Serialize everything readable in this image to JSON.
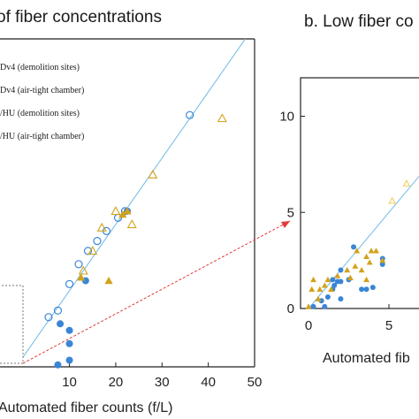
{
  "colors": {
    "blue": "#3a86d6",
    "gold": "#d2a21c",
    "gold_light": "#f0d060",
    "line": "#7cc0e8",
    "arrow": "#e03a3a",
    "axis": "#222222"
  },
  "chart_data": [
    {
      "type": "scatter",
      "title": "of fiber concentrations",
      "xlabel": "Automated fiber counts (f/L)",
      "ylabel": "",
      "xlim": [
        -5,
        50
      ],
      "ylim": [
        -1.5,
        48
      ],
      "xticks": [
        10,
        20,
        30,
        40,
        50
      ],
      "xtick_labels": [
        "10",
        "20",
        "30",
        "40",
        "50"
      ],
      "grid": false,
      "legend_position": "top-left",
      "legend": [
        "Dv4 (demolition sites)",
        "Dv4 (air-tight chamber)",
        "/HU (demolition sites)",
        "/HU (air-tight chamber)"
      ],
      "reference_line": {
        "label": "",
        "slope": 1,
        "intercept": 0
      },
      "series": [
        {
          "name": "Dv4 (demolition sites)",
          "marker": "circle-open",
          "color": "blue",
          "points": [
            [
              36,
              36.5
            ],
            [
              22,
              22
            ],
            [
              20.5,
              21
            ],
            [
              18,
              19
            ],
            [
              16,
              17.5
            ],
            [
              14,
              16
            ],
            [
              12,
              14
            ],
            [
              10,
              11
            ],
            [
              7.5,
              7
            ],
            [
              5.5,
              6
            ]
          ]
        },
        {
          "name": "Dv4 (air-tight chamber)",
          "marker": "triangle-open",
          "color": "gold",
          "points": [
            [
              43,
              36
            ],
            [
              28,
              27.5
            ],
            [
              23.5,
              20
            ],
            [
              17,
              19.5
            ],
            [
              15,
              16
            ],
            [
              13,
              13
            ],
            [
              20,
              22
            ]
          ]
        },
        {
          "name": "/HU (demolition sites)",
          "marker": "circle-filled",
          "color": "blue",
          "points": [
            [
              22.5,
              22
            ],
            [
              13.5,
              11.5
            ],
            [
              10,
              4
            ],
            [
              10,
              2
            ],
            [
              10,
              -0.5
            ],
            [
              8,
              5
            ],
            [
              7.5,
              -1.2
            ]
          ]
        },
        {
          "name": "/HU (air-tight chamber)",
          "marker": "triangle-filled",
          "color": "gold",
          "points": [
            [
              21.5,
              21.5
            ],
            [
              22.5,
              22
            ],
            [
              18.5,
              11.5
            ],
            [
              12.5,
              12
            ]
          ]
        }
      ]
    },
    {
      "type": "scatter",
      "title": "b. Low fiber co",
      "xlabel": "Automated fib",
      "ylabel": "",
      "xlim": [
        -0.5,
        7.2
      ],
      "ylim": [
        0,
        12
      ],
      "xticks": [
        0,
        5
      ],
      "xtick_labels": [
        "0",
        "5"
      ],
      "yticks": [
        0,
        5,
        10
      ],
      "ytick_labels": [
        "0",
        "5",
        "10"
      ],
      "grid": false,
      "reference_line": {
        "label": "",
        "slope": 1,
        "intercept": 0
      },
      "series": [
        {
          "name": "circle-filled-blue",
          "marker": "circle-filled",
          "color": "blue",
          "points": [
            [
              0.3,
              0.1
            ],
            [
              0.8,
              0.4
            ],
            [
              1.0,
              0.1
            ],
            [
              2.0,
              0.5
            ],
            [
              1.2,
              0.6
            ],
            [
              1.5,
              1.0
            ],
            [
              1.6,
              1.2
            ],
            [
              1.8,
              1.4
            ],
            [
              1.5,
              1.5
            ],
            [
              2.0,
              1.4
            ],
            [
              2.0,
              2.0
            ],
            [
              2.8,
              3.2
            ],
            [
              2.5,
              1.5
            ],
            [
              3.3,
              1.0
            ],
            [
              3.6,
              1.0
            ],
            [
              4.0,
              1.1
            ],
            [
              4.6,
              2.3
            ],
            [
              4.6,
              2.6
            ]
          ]
        },
        {
          "name": "triangle-filled-gold",
          "marker": "triangle-filled",
          "color": "gold",
          "points": [
            [
              0,
              0.1
            ],
            [
              0.2,
              1.0
            ],
            [
              0.3,
              1.5
            ],
            [
              0.6,
              0.5
            ],
            [
              0.7,
              1.0
            ],
            [
              1.0,
              1.2
            ],
            [
              1.2,
              1.5
            ],
            [
              1.4,
              1.0
            ],
            [
              1.8,
              1.7
            ],
            [
              2.4,
              2.0
            ],
            [
              2.6,
              1.6
            ],
            [
              2.9,
              2.2
            ],
            [
              3.0,
              3.0
            ],
            [
              3.3,
              2.0
            ],
            [
              3.6,
              2.7
            ],
            [
              3.8,
              2.4
            ],
            [
              3.9,
              3.0
            ],
            [
              4.2,
              3.0
            ],
            [
              4.6,
              2.5
            ],
            [
              3.6,
              1.5
            ]
          ]
        },
        {
          "name": "triangle-open-gold",
          "marker": "triangle-open",
          "color": "gold_light",
          "points": [
            [
              5.2,
              5.6
            ],
            [
              6.1,
              6.5
            ]
          ]
        }
      ]
    }
  ]
}
